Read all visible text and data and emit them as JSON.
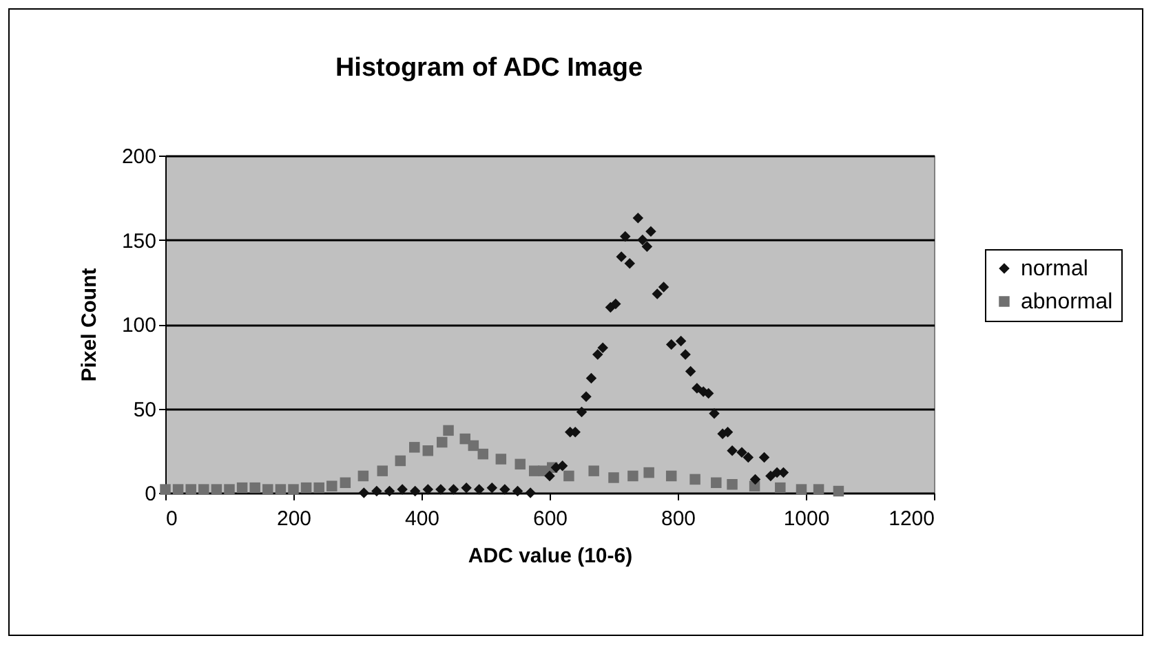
{
  "chart_data": {
    "type": "scatter",
    "title": "Histogram of ADC Image",
    "xlabel": "ADC value  (10-6)",
    "ylabel": "Pixel Count",
    "xlim": [
      0,
      1200
    ],
    "xticks": [
      0,
      200,
      400,
      600,
      800,
      1000,
      1200
    ],
    "ylim": [
      0,
      200
    ],
    "yticks": [
      0,
      50,
      100,
      150,
      200
    ],
    "grid": "y",
    "legend": "right",
    "series": [
      {
        "name": "normal",
        "color": "#111111",
        "marker": "diamond",
        "x": [
          310,
          330,
          350,
          370,
          390,
          410,
          430,
          450,
          470,
          490,
          510,
          530,
          550,
          570,
          600,
          610,
          620,
          632,
          640,
          650,
          657,
          665,
          675,
          683,
          695,
          703,
          712,
          718,
          725,
          738,
          745,
          752,
          758,
          768,
          778,
          790,
          805,
          812,
          820,
          830,
          840,
          848,
          857,
          870,
          878,
          885,
          900,
          910,
          921,
          935,
          945,
          955,
          965
        ],
        "values": [
          0,
          1,
          1,
          2,
          1,
          2,
          2,
          2,
          3,
          2,
          3,
          2,
          1,
          0,
          10,
          15,
          16,
          36,
          36,
          48,
          57,
          68,
          82,
          86,
          110,
          112,
          140,
          152,
          136,
          163,
          150,
          146,
          155,
          118,
          122,
          88,
          90,
          82,
          72,
          62,
          60,
          59,
          47,
          35,
          36,
          25,
          24,
          21,
          8,
          21,
          10,
          12,
          12
        ]
      },
      {
        "name": "abnormal",
        "color": "#707070",
        "marker": "square",
        "x": [
          0,
          20,
          40,
          60,
          80,
          100,
          120,
          140,
          160,
          180,
          200,
          220,
          240,
          260,
          281,
          309,
          339,
          367,
          389,
          410,
          432,
          442,
          468,
          481,
          496,
          524,
          554,
          576,
          590,
          604,
          630,
          669,
          700,
          730,
          755,
          790,
          827,
          860,
          885,
          920,
          960,
          993,
          1020,
          1051
        ],
        "values": [
          2,
          2,
          2,
          2,
          2,
          2,
          3,
          3,
          2,
          2,
          2,
          3,
          3,
          4,
          6,
          10,
          13,
          19,
          27,
          25,
          30,
          37,
          32,
          28,
          23,
          20,
          17,
          13,
          13,
          15,
          10,
          13,
          9,
          10,
          12,
          10,
          8,
          6,
          5,
          4,
          3,
          2,
          2,
          1
        ]
      }
    ]
  }
}
